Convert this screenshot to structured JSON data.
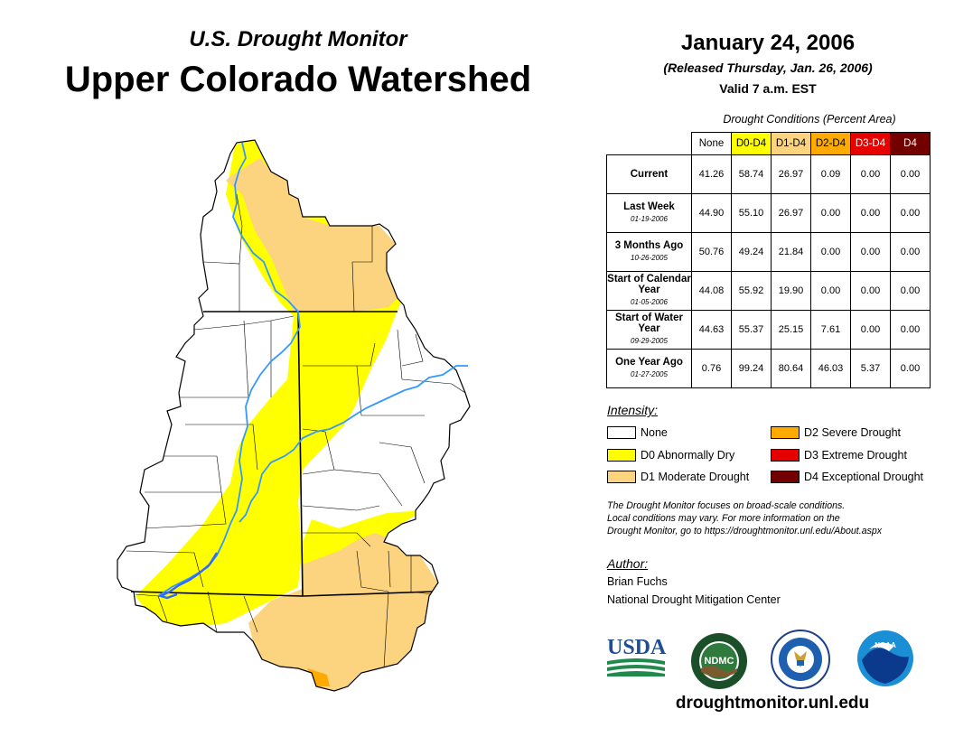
{
  "header": {
    "subtitle": "U.S. Drought Monitor",
    "title": "Upper Colorado Watershed",
    "date": "January 24, 2006",
    "released": "(Released Thursday, Jan. 26, 2006)",
    "valid": "Valid 7 a.m. EST"
  },
  "table": {
    "caption": "Drought Conditions (Percent Area)",
    "columns": [
      {
        "label": "None",
        "color": "#ffffff",
        "text_color": "#000000"
      },
      {
        "label": "D0-D4",
        "color": "#ffff00",
        "text_color": "#000000"
      },
      {
        "label": "D1-D4",
        "color": "#fcd37f",
        "text_color": "#000000"
      },
      {
        "label": "D2-D4",
        "color": "#ffaa00",
        "text_color": "#000000"
      },
      {
        "label": "D3-D4",
        "color": "#e60000",
        "text_color": "#ffffff"
      },
      {
        "label": "D4",
        "color": "#730000",
        "text_color": "#ffffff"
      }
    ],
    "rows": [
      {
        "label": "Current",
        "sub": "",
        "values": [
          "41.26",
          "58.74",
          "26.97",
          "0.09",
          "0.00",
          "0.00"
        ]
      },
      {
        "label": "Last Week",
        "sub": "01-19-2006",
        "values": [
          "44.90",
          "55.10",
          "26.97",
          "0.00",
          "0.00",
          "0.00"
        ]
      },
      {
        "label": "3 Months Ago",
        "sub": "10-26-2005",
        "values": [
          "50.76",
          "49.24",
          "21.84",
          "0.00",
          "0.00",
          "0.00"
        ]
      },
      {
        "label": "Start of Calendar Year",
        "sub": "01-05-2006",
        "values": [
          "44.08",
          "55.92",
          "19.90",
          "0.00",
          "0.00",
          "0.00"
        ]
      },
      {
        "label": "Start of Water Year",
        "sub": "09-29-2005",
        "values": [
          "44.63",
          "55.37",
          "25.15",
          "7.61",
          "0.00",
          "0.00"
        ]
      },
      {
        "label": "One Year Ago",
        "sub": "01-27-2005",
        "values": [
          "0.76",
          "99.24",
          "80.64",
          "46.03",
          "5.37",
          "0.00"
        ]
      }
    ]
  },
  "legend": {
    "title": "Intensity:",
    "items": [
      {
        "label": "None",
        "color": "#ffffff"
      },
      {
        "label": "D0 Abnormally Dry",
        "color": "#ffff00"
      },
      {
        "label": "D1 Moderate Drought",
        "color": "#fcd37f"
      },
      {
        "label": "D2 Severe Drought",
        "color": "#ffaa00"
      },
      {
        "label": "D3 Extreme Drought",
        "color": "#e60000"
      },
      {
        "label": "D4 Exceptional Drought",
        "color": "#730000"
      }
    ]
  },
  "note": {
    "line1": "The Drought Monitor focuses on broad-scale conditions.",
    "line2": "Local conditions may vary. For more information on the",
    "line3": "Drought Monitor, go to https://droughtmonitor.unl.edu/About.aspx"
  },
  "author": {
    "title": "Author:",
    "name": "Brian Fuchs",
    "org": "National Drought Mitigation Center"
  },
  "logos": {
    "usda": "USDA",
    "ndmc": "NDMC",
    "noaa": "NOAA"
  },
  "website": "droughtmonitor.unl.edu",
  "colors": {
    "d0": "#ffff00",
    "d1": "#fcd37f",
    "d2": "#ffaa00",
    "river": "#3399ff",
    "boundary": "#000000"
  }
}
